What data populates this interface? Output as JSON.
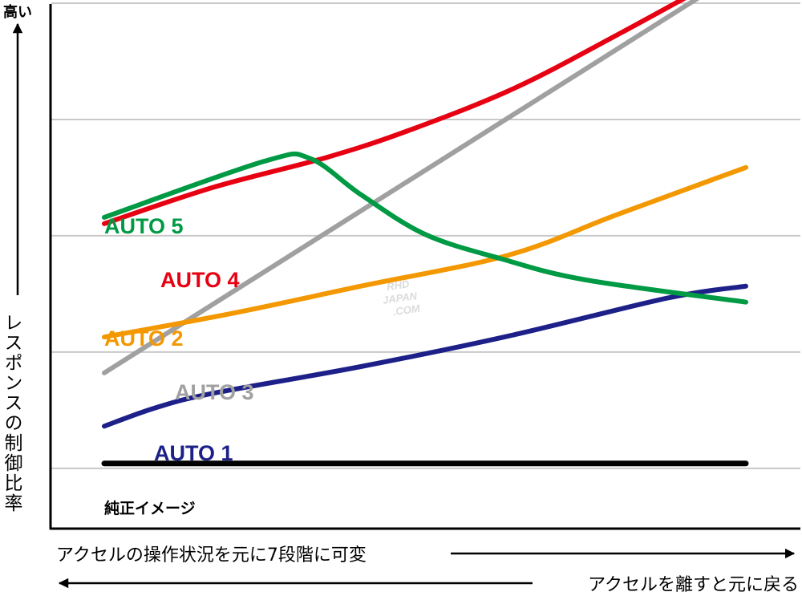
{
  "chart_data": {
    "type": "line",
    "title": "",
    "y_axis": {
      "top_label": "高い",
      "label": "レスポンスの制御比率",
      "ylim": [
        0,
        100
      ],
      "grid": true
    },
    "x_axis": {
      "forward_label": "アクセルの操作状況を元に7段階に可変",
      "backward_label": "アクセルを離すと元に戻る",
      "xlim": [
        0,
        100
      ]
    },
    "baseline": {
      "name": "純正イメージ",
      "value": 5,
      "color": "#000000"
    },
    "series": [
      {
        "name": "AUTO 5",
        "color": "#009944",
        "points": [
          [
            0,
            55.8
          ],
          [
            25,
            67.4
          ],
          [
            32,
            68.0
          ],
          [
            40,
            60.5
          ],
          [
            50,
            52.3
          ],
          [
            62,
            47.2
          ],
          [
            75,
            42.9
          ],
          [
            100,
            38.3
          ]
        ]
      },
      {
        "name": "AUTO 4",
        "color": "#e60012",
        "points": [
          [
            0,
            54.5
          ],
          [
            17,
            62.0
          ],
          [
            35,
            68.3
          ],
          [
            48,
            74.0
          ],
          [
            64,
            82.5
          ],
          [
            80,
            93.5
          ],
          [
            100,
            108.0
          ]
        ]
      },
      {
        "name": "AUTO 3",
        "color": "#a0a0a0",
        "points": [
          [
            0,
            23.7
          ],
          [
            100,
            107.3
          ]
        ]
      },
      {
        "name": "AUTO 2",
        "color": "#f39800",
        "points": [
          [
            0,
            31.1
          ],
          [
            20,
            36.0
          ],
          [
            40,
            41.6
          ],
          [
            63,
            48.0
          ],
          [
            80,
            56.4
          ],
          [
            100,
            66.1
          ]
        ]
      },
      {
        "name": "AUTO 1",
        "color": "#1d2088",
        "points": [
          [
            0,
            12.7
          ],
          [
            8,
            16.5
          ],
          [
            17,
            19.5
          ],
          [
            40,
            25.0
          ],
          [
            63,
            31.3
          ],
          [
            88,
            39.2
          ],
          [
            100,
            41.6
          ]
        ]
      }
    ]
  },
  "watermark": {
    "lines": [
      "RHD",
      "JAPAN",
      ".COM"
    ]
  }
}
